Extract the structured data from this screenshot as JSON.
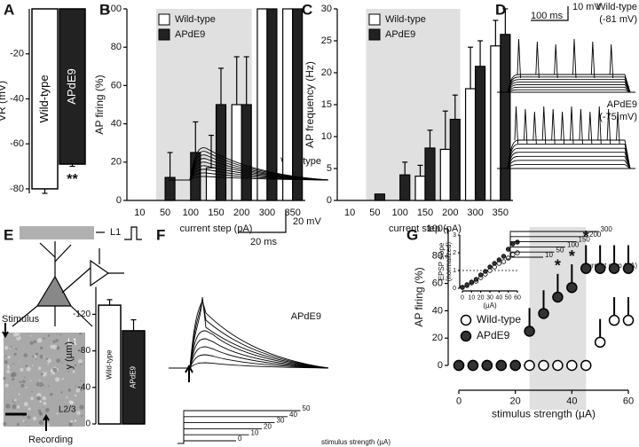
{
  "chart_data": [
    {
      "type": "bar",
      "panel_label": "A",
      "ylabel": "VR (mV)",
      "annotation": "**",
      "series": [
        {
          "name": "Wild-type",
          "color": "#ffffff",
          "values": [
            -80
          ],
          "errors": [
            2
          ]
        },
        {
          "name": "APdE9",
          "color": "#222222",
          "values": [
            -69
          ],
          "errors": [
            1
          ]
        }
      ],
      "ylim": [
        -82,
        0
      ],
      "yticks": [
        -80,
        -60,
        -40,
        -20
      ]
    },
    {
      "type": "bar",
      "panel_label": "B",
      "xlabel": "current step (pA)",
      "ylabel": "AP firing (%)",
      "categories": [
        "10",
        "50",
        "100",
        "150",
        "200",
        "300",
        "350"
      ],
      "series": [
        {
          "name": "Wild-type",
          "color": "#ffffff",
          "values": [
            0,
            0,
            0,
            17,
            50,
            100,
            100
          ],
          "errors": [
            0,
            0,
            0,
            17,
            25,
            0,
            0
          ]
        },
        {
          "name": "APdE9",
          "color": "#222222",
          "values": [
            0,
            12,
            25,
            50,
            50,
            100,
            100
          ],
          "errors": [
            0,
            13,
            16,
            19,
            25,
            0,
            0
          ]
        }
      ],
      "ylim": [
        0,
        100
      ],
      "yticks": [
        0,
        20,
        40,
        60,
        80,
        100
      ],
      "highlight": [
        "50",
        "200"
      ],
      "legend": "upper left"
    },
    {
      "type": "bar",
      "panel_label": "C",
      "xlabel": "current step (pA)",
      "ylabel": "AP frequency (Hz)",
      "categories": [
        "10",
        "50",
        "100",
        "150",
        "200",
        "300",
        "350"
      ],
      "series": [
        {
          "name": "Wild-type",
          "color": "#ffffff",
          "values": [
            0,
            0,
            0,
            3.8,
            8,
            17.5,
            24.2
          ],
          "errors": [
            0,
            0,
            0,
            1.7,
            6,
            6.5,
            4
          ]
        },
        {
          "name": "APdE9",
          "color": "#222222",
          "values": [
            0,
            1,
            4,
            8.2,
            12.7,
            21,
            26
          ],
          "errors": [
            0,
            0,
            2,
            2.8,
            3.8,
            4,
            4
          ]
        }
      ],
      "ylim": [
        0,
        30
      ],
      "yticks": [
        0,
        5,
        10,
        15,
        20,
        25,
        30
      ],
      "highlight": [
        "50",
        "200"
      ],
      "legend": "upper left"
    },
    {
      "type": "bar",
      "ylabel": "y (µm)",
      "series": [
        {
          "name": "Wild-type",
          "color": "#ffffff",
          "values": [
            -130
          ],
          "errors": [
            6
          ]
        },
        {
          "name": "APdE9",
          "color": "#222222",
          "values": [
            -102
          ],
          "errors": [
            12
          ]
        }
      ],
      "ylim": [
        0,
        -150
      ],
      "yticks": [
        -120,
        -80,
        -40,
        0
      ]
    },
    {
      "type": "scatter",
      "panel_label": "G",
      "xlabel": "stimulus strength (µA)",
      "ylabel": "AP firing (%)",
      "x": [
        0,
        5,
        10,
        15,
        20,
        25,
        30,
        35,
        40,
        45,
        50,
        55,
        60
      ],
      "series": [
        {
          "name": "Wild-type",
          "color": "#ffffff",
          "values": [
            0,
            0,
            0,
            0,
            0,
            0,
            0,
            0,
            0,
            0,
            17,
            33,
            33
          ],
          "errors": [
            0,
            0,
            0,
            0,
            0,
            0,
            0,
            0,
            0,
            0,
            17,
            17,
            17
          ]
        },
        {
          "name": "APdE9",
          "color": "#333333",
          "values": [
            0,
            0,
            0,
            0,
            0,
            25,
            38,
            50,
            57,
            71,
            71,
            71,
            71
          ],
          "errors": [
            0,
            0,
            0,
            0,
            0,
            17,
            17,
            17,
            17,
            17,
            17,
            17,
            17
          ]
        }
      ],
      "xlim": [
        0,
        60
      ],
      "xticks": [
        0,
        20,
        40,
        60
      ],
      "ylim": [
        0,
        100
      ],
      "yticks": [
        0,
        20,
        40,
        60,
        80,
        100
      ],
      "highlight": [
        25,
        45
      ],
      "legend": "center left",
      "annotations": [
        {
          "x": 35,
          "text": "*"
        },
        {
          "x": 40,
          "text": "*"
        },
        {
          "x": 45,
          "text": "*"
        }
      ]
    },
    {
      "type": "scatter",
      "ylabel": [
        "EPSP slope",
        "(normalized)"
      ],
      "xlabel": "(µA)",
      "x": [
        0,
        5,
        10,
        15,
        20,
        25,
        30,
        35,
        40,
        45,
        50,
        55,
        60
      ],
      "series": [
        {
          "color": "#ffffff",
          "values": [
            0.05,
            0.15,
            0.3,
            0.4,
            0.6,
            0.8,
            1.0,
            1.2,
            1.4,
            1.5,
            1.7,
            1.9,
            2.0
          ]
        },
        {
          "color": "#333333",
          "values": [
            0.05,
            0.2,
            0.35,
            0.5,
            0.75,
            0.95,
            1.2,
            1.4,
            1.6,
            1.8,
            2.2,
            2.5,
            2.6
          ]
        }
      ],
      "xlim": [
        0,
        60
      ],
      "xticks": [
        0,
        10,
        20,
        30,
        40,
        50,
        60
      ],
      "ylim": [
        0,
        3
      ],
      "yticks": [
        0,
        1,
        2,
        3
      ],
      "reference_line": 1
    }
  ],
  "panels": {
    "D": {
      "label": "D",
      "scale_y": "10 mV",
      "scale_x": "100 ms",
      "traces": [
        {
          "name": "Wild-type",
          "potential": "(-81 mV)"
        },
        {
          "name": "APdE9",
          "potential": "(-75 mV)"
        }
      ],
      "steps": [
        "10",
        "50",
        "100",
        "150",
        "200",
        "300"
      ],
      "step_axis": "current step (pA)"
    },
    "E": {
      "label": "E",
      "layer_top": "L1",
      "stimulus": "Stimulus",
      "layer1": "L1",
      "layer23": "L2/3",
      "recording": "Recording"
    },
    "F": {
      "label": "F",
      "scale_y": "20 mV",
      "scale_x": "20 ms",
      "traces": [
        "Wild-type",
        "APdE9"
      ],
      "steps": [
        "0",
        "10",
        "20",
        "30",
        "40",
        "50"
      ],
      "step_axis": "stimulus strength (µA)"
    }
  }
}
